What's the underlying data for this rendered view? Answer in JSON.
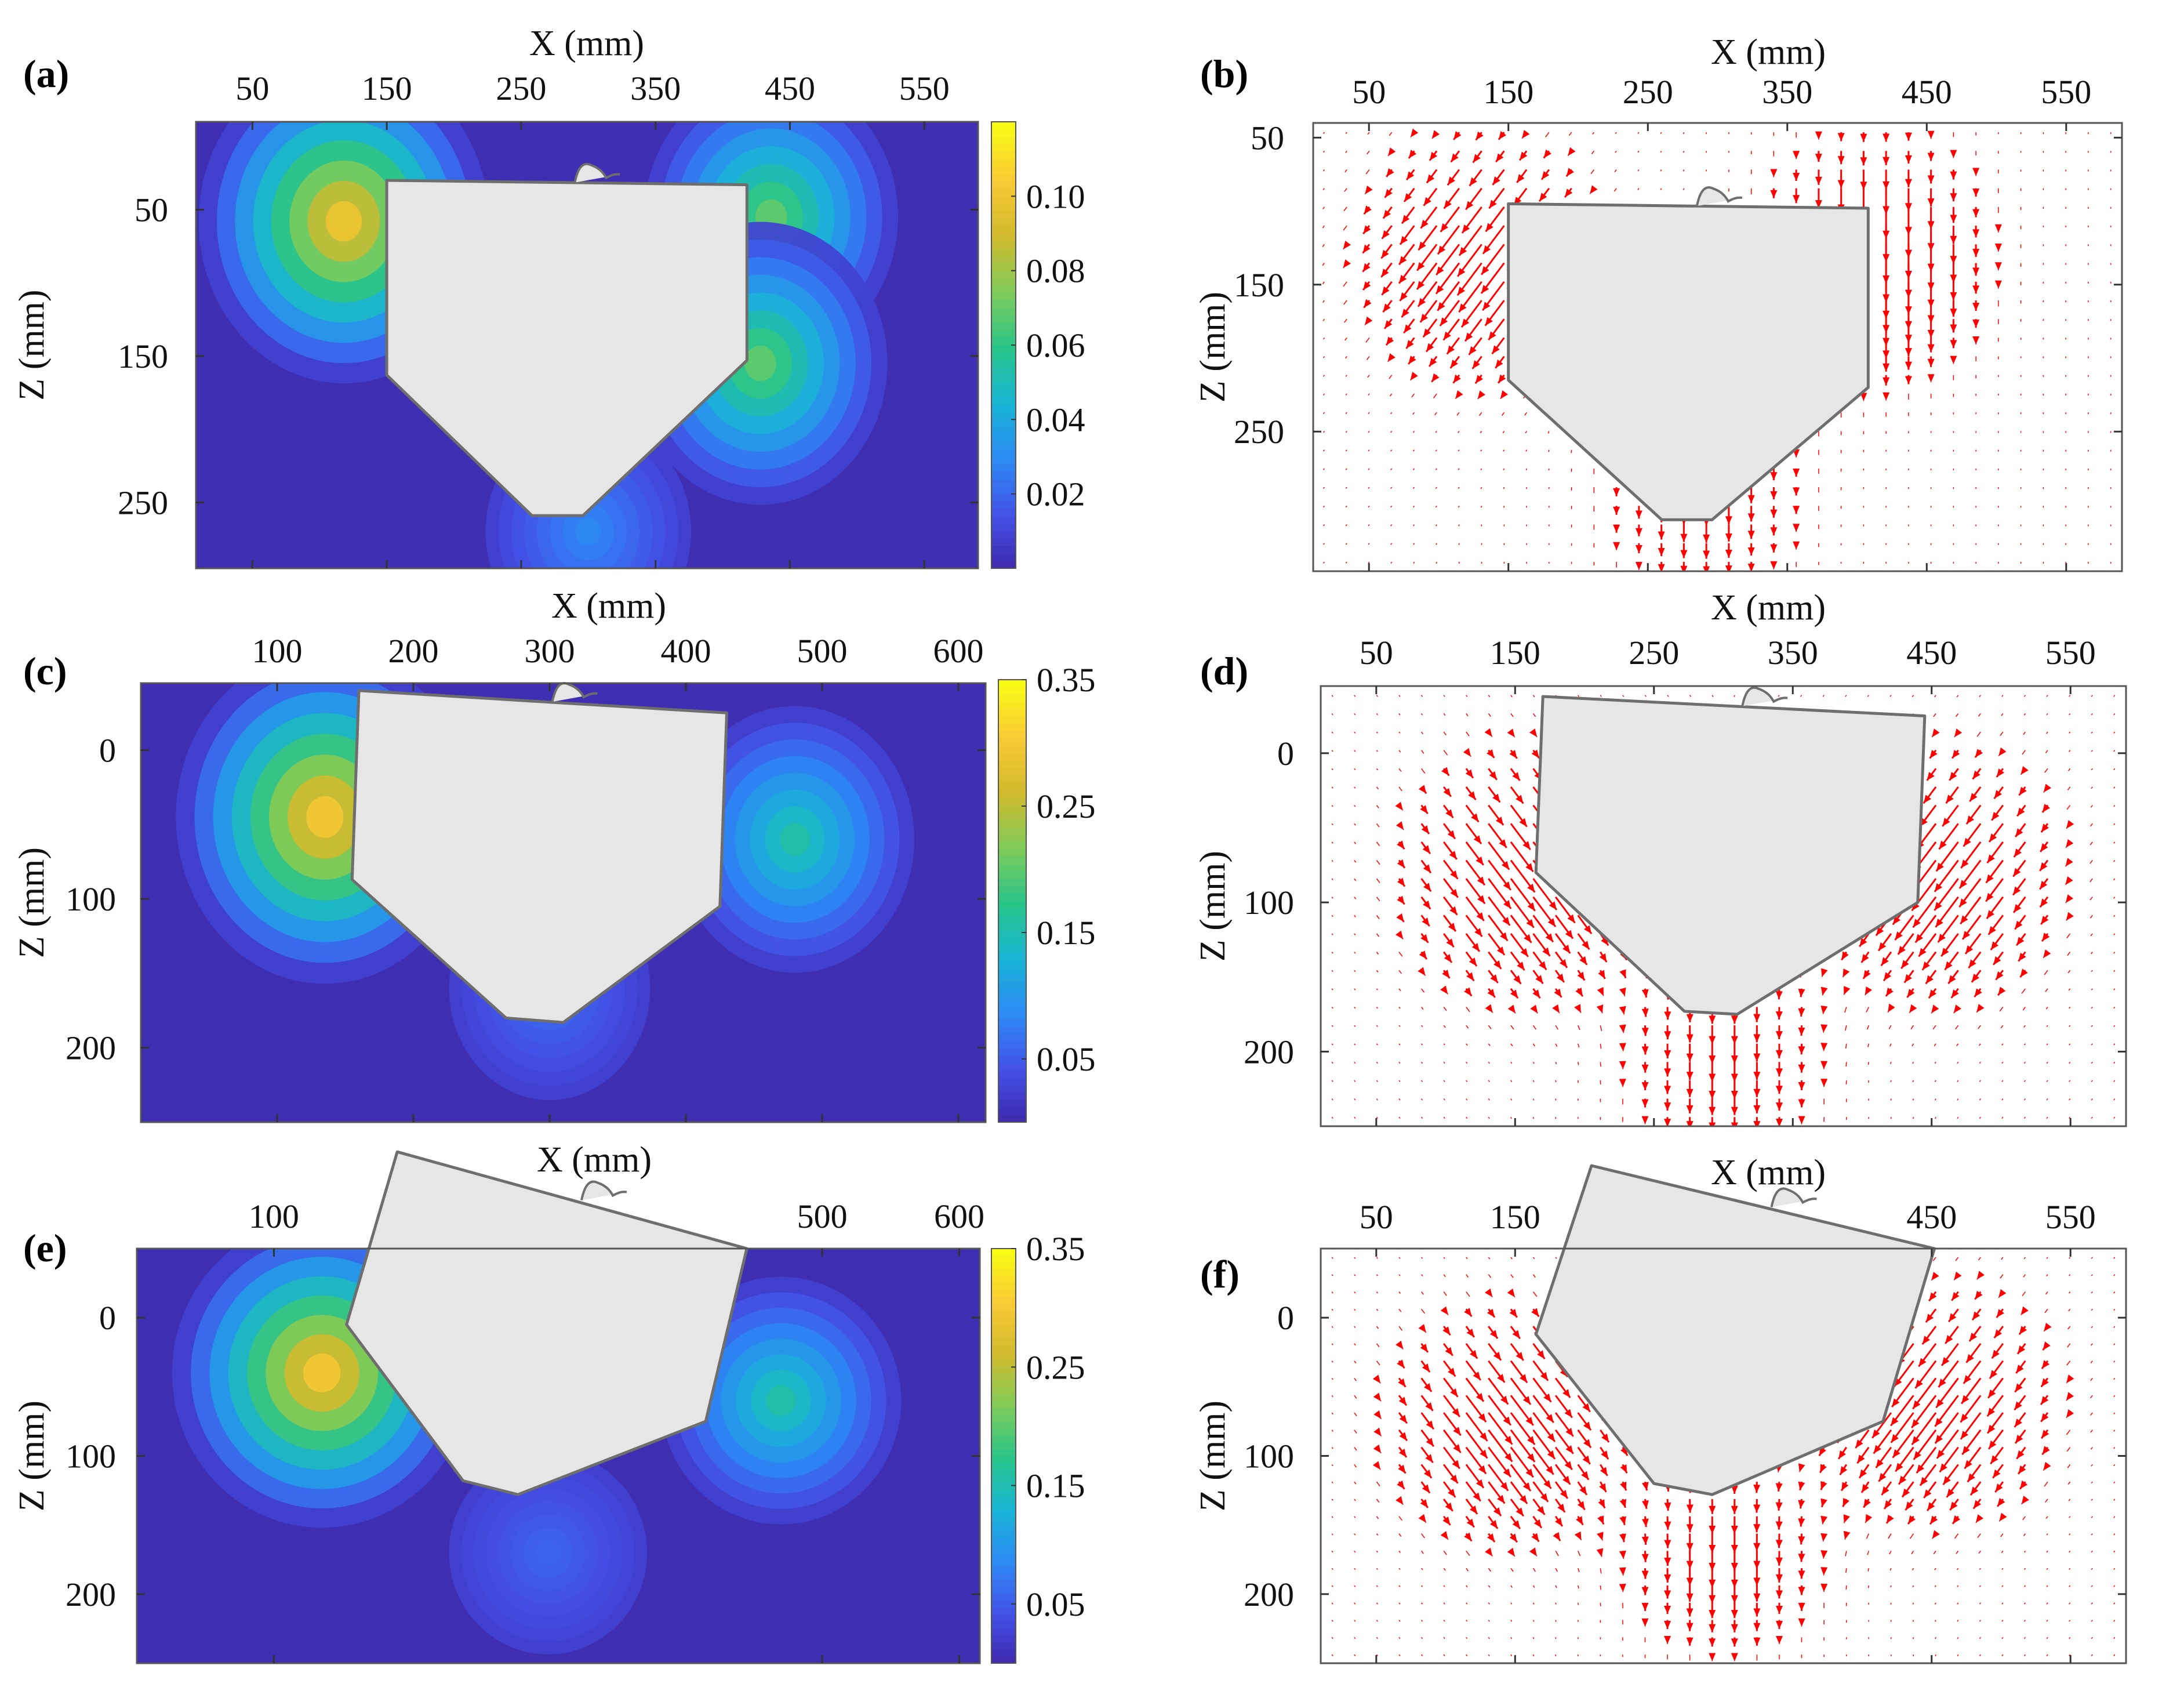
{
  "figure": {
    "colormap": [
      "#3E26A8",
      "#4350E6",
      "#2D89F4",
      "#19B3D6",
      "#27C48A",
      "#7DCB5A",
      "#D0BA2E",
      "#F9C935",
      "#F9FB15"
    ]
  },
  "chart_data": [
    {
      "panel": "(a)",
      "type": "heatmap",
      "xlabel": "X (mm)",
      "ylabel": "Z (mm)",
      "xlim": [
        8,
        590
      ],
      "ylim": [
        -10,
        295
      ],
      "xticks": [
        "50",
        "150",
        "250",
        "350",
        "450",
        "550"
      ],
      "yticks": [
        "50",
        "150",
        "250"
      ],
      "colorbar": {
        "min": 0.0,
        "max": 0.12,
        "ticks": [
          "0.02",
          "0.04",
          "0.06",
          "0.08",
          "0.10"
        ]
      },
      "hotspots": [
        {
          "x": 118,
          "z": 58,
          "value": 0.1
        },
        {
          "x": 436,
          "z": 55,
          "value": 0.07
        },
        {
          "x": 428,
          "z": 155,
          "value": 0.07
        },
        {
          "x": 300,
          "z": 270,
          "value": 0.03
        }
      ],
      "body_outline": [
        [
          150,
          30
        ],
        [
          418,
          33
        ],
        [
          418,
          153
        ],
        [
          296,
          259
        ],
        [
          258,
          259
        ],
        [
          150,
          163
        ]
      ]
    },
    {
      "panel": "(b)",
      "type": "vector",
      "xlabel": "X (mm)",
      "ylabel": "Z (mm)",
      "xlim": [
        10,
        590
      ],
      "ylim": [
        40,
        345
      ],
      "xticks": [
        "50",
        "150",
        "250",
        "350",
        "450",
        "550"
      ],
      "yticks": [
        "50",
        "150",
        "250"
      ],
      "flow_centers": [
        {
          "x": 130,
          "z": 130,
          "direction": "down-left",
          "strength": 1.0
        },
        {
          "x": 410,
          "z": 130,
          "direction": "down",
          "strength": 1.0
        },
        {
          "x": 290,
          "z": 290,
          "direction": "down",
          "strength": 0.5
        }
      ],
      "body_outline": [
        [
          150,
          95
        ],
        [
          408,
          98
        ],
        [
          408,
          220
        ],
        [
          296,
          310
        ],
        [
          260,
          310
        ],
        [
          150,
          215
        ]
      ]
    },
    {
      "panel": "(c)",
      "type": "heatmap",
      "xlabel": "X (mm)",
      "ylabel": "Z (mm)",
      "xlim": [
        0,
        620
      ],
      "ylim": [
        -45,
        250
      ],
      "xticks": [
        "100",
        "200",
        "300",
        "400",
        "500",
        "600"
      ],
      "yticks": [
        "0",
        "100",
        "200"
      ],
      "colorbar": {
        "min": 0.0,
        "max": 0.35,
        "ticks": [
          "0.05",
          "0.15",
          "0.25",
          "0.35"
        ]
      },
      "hotspots": [
        {
          "x": 135,
          "z": 45,
          "value": 0.3
        },
        {
          "x": 480,
          "z": 60,
          "value": 0.16
        },
        {
          "x": 300,
          "z": 160,
          "value": 0.07
        }
      ],
      "body_outline": [
        [
          160,
          -40
        ],
        [
          430,
          -25
        ],
        [
          425,
          105
        ],
        [
          310,
          183
        ],
        [
          268,
          180
        ],
        [
          155,
          87
        ]
      ]
    },
    {
      "panel": "(d)",
      "type": "vector",
      "xlabel": "X (mm)",
      "ylabel": "Z (mm)",
      "xlim": [
        10,
        590
      ],
      "ylim": [
        -45,
        250
      ],
      "xticks": [
        "50",
        "150",
        "250",
        "350",
        "450",
        "550"
      ],
      "yticks": [
        "0",
        "100",
        "200"
      ],
      "flow_centers": [
        {
          "x": 150,
          "z": 80,
          "direction": "down-right",
          "strength": 1.0
        },
        {
          "x": 460,
          "z": 80,
          "direction": "down-left",
          "strength": 1.0
        },
        {
          "x": 300,
          "z": 200,
          "direction": "down",
          "strength": 0.5
        }
      ],
      "body_outline": [
        [
          170,
          -38
        ],
        [
          445,
          -25
        ],
        [
          440,
          100
        ],
        [
          310,
          175
        ],
        [
          272,
          173
        ],
        [
          165,
          80
        ]
      ]
    },
    {
      "panel": "(e)",
      "type": "heatmap",
      "xlabel": "X (mm)",
      "ylabel": "Z (mm)",
      "xlim": [
        0,
        615
      ],
      "ylim": [
        -50,
        250
      ],
      "xticks": [
        "100",
        "500",
        "600"
      ],
      "yticks": [
        "0",
        "100",
        "200"
      ],
      "colorbar": {
        "min": 0.0,
        "max": 0.35,
        "ticks": [
          "0.05",
          "0.15",
          "0.25",
          "0.35"
        ]
      },
      "hotspots": [
        {
          "x": 135,
          "z": 40,
          "value": 0.3
        },
        {
          "x": 470,
          "z": 60,
          "value": 0.16
        },
        {
          "x": 300,
          "z": 170,
          "value": 0.06
        }
      ],
      "body_outline": [
        [
          190,
          -120
        ],
        [
          445,
          -50
        ],
        [
          415,
          75
        ],
        [
          278,
          128
        ],
        [
          238,
          118
        ],
        [
          153,
          5
        ]
      ]
    },
    {
      "panel": "(f)",
      "type": "vector",
      "xlabel": "X (mm)",
      "ylabel": "Z (mm)",
      "xlim": [
        10,
        590
      ],
      "ylim": [
        -50,
        250
      ],
      "xticks": [
        "50",
        "150",
        "450",
        "550"
      ],
      "yticks": [
        "0",
        "100",
        "200"
      ],
      "flow_centers": [
        {
          "x": 140,
          "z": 75,
          "direction": "down-right",
          "strength": 1.0
        },
        {
          "x": 455,
          "z": 60,
          "direction": "down-left",
          "strength": 1.0
        },
        {
          "x": 300,
          "z": 170,
          "direction": "down",
          "strength": 0.5
        }
      ],
      "body_outline": [
        [
          205,
          -110
        ],
        [
          452,
          -50
        ],
        [
          415,
          75
        ],
        [
          292,
          128
        ],
        [
          250,
          120
        ],
        [
          165,
          12
        ]
      ]
    }
  ]
}
